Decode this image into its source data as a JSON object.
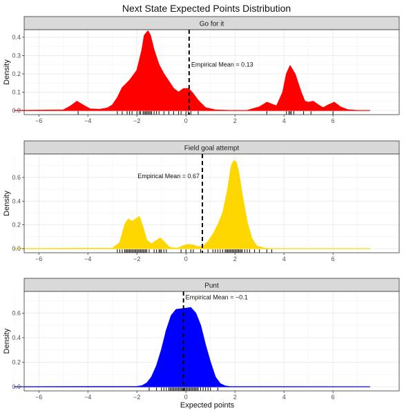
{
  "title": "Next State Expected Points Distribution",
  "xlabel": "Expected points",
  "ylabel": "Density",
  "chart_data": {
    "type": "area",
    "title": "Next State Expected Points Distribution",
    "xlabel": "Expected points",
    "ylabel": "Density",
    "xlim": [
      -7,
      7.5
    ],
    "x_ticks": [
      "-6",
      "-4",
      "-2",
      "0",
      "2",
      "4",
      "6"
    ],
    "grid": true,
    "facets": [
      {
        "label": "Go for it",
        "color": "#ff0000",
        "ylim": [
          0,
          0.43
        ],
        "y_ticks": [
          "0.0",
          "0.1",
          "0.2",
          "0.3",
          "0.4"
        ],
        "mean": 0.13,
        "mean_label": "Empirical Mean =  0.13",
        "label_side": "right",
        "label_y": 0.25,
        "density": {
          "x": [
            -7.0,
            -5.0,
            -4.7,
            -4.45,
            -4.2,
            -3.9,
            -3.5,
            -3.2,
            -3.0,
            -2.8,
            -2.6,
            -2.3,
            -2.0,
            -1.8,
            -1.7,
            -1.55,
            -1.45,
            -1.3,
            -1.1,
            -0.9,
            -0.7,
            -0.5,
            -0.3,
            -0.1,
            0.1,
            0.25,
            0.5,
            0.8,
            1.2,
            1.8,
            2.5,
            3.0,
            3.3,
            3.7,
            3.95,
            4.1,
            4.25,
            4.45,
            4.7,
            4.85,
            5.0,
            5.2,
            5.4,
            5.6,
            5.8,
            6.05,
            6.3,
            6.6,
            7.0,
            7.5
          ],
          "y": [
            0.0,
            0.003,
            0.025,
            0.05,
            0.03,
            0.008,
            0.006,
            0.014,
            0.03,
            0.07,
            0.125,
            0.165,
            0.22,
            0.33,
            0.41,
            0.435,
            0.41,
            0.33,
            0.25,
            0.2,
            0.16,
            0.12,
            0.1,
            0.12,
            0.12,
            0.1,
            0.055,
            0.015,
            0.003,
            0.0,
            0.0,
            0.02,
            0.045,
            0.025,
            0.1,
            0.2,
            0.245,
            0.2,
            0.1,
            0.05,
            0.045,
            0.05,
            0.03,
            0.015,
            0.03,
            0.045,
            0.02,
            0.004,
            0.0,
            0.0
          ]
        },
        "rug": [
          -4.4,
          -2.8,
          -2.6,
          -2.4,
          -2.3,
          -2.2,
          -2.0,
          -1.9,
          -1.85,
          -1.75,
          -1.7,
          -1.65,
          -1.6,
          -1.55,
          -1.5,
          -1.45,
          -1.4,
          -1.3,
          -1.2,
          -1.1,
          -0.9,
          -0.7,
          -0.5,
          -0.3,
          -0.2,
          0.0,
          0.1,
          0.2,
          0.5,
          3.3,
          4.1,
          4.2,
          4.25,
          4.3,
          4.4,
          4.8,
          5.1,
          6.0
        ]
      },
      {
        "label": "Field goal attempt",
        "color": "#ffd700",
        "ylim": [
          0,
          0.78
        ],
        "y_ticks": [
          "0.0",
          "0.2",
          "0.4",
          "0.6"
        ],
        "mean": 0.67,
        "mean_label": "Empirical Mean =  0.67",
        "label_side": "left",
        "label_y": 0.61,
        "density": {
          "x": [
            -7.0,
            -3.0,
            -2.7,
            -2.5,
            -2.35,
            -2.2,
            -2.05,
            -1.9,
            -1.75,
            -1.6,
            -1.4,
            -1.2,
            -1.05,
            -0.9,
            -0.7,
            -0.5,
            -0.3,
            -0.1,
            0.1,
            0.3,
            0.5,
            0.7,
            0.9,
            1.1,
            1.3,
            1.5,
            1.7,
            1.85,
            1.95,
            2.05,
            2.15,
            2.3,
            2.5,
            2.7,
            2.9,
            3.2,
            3.5,
            7.5
          ],
          "y": [
            0.0,
            0.003,
            0.05,
            0.2,
            0.25,
            0.23,
            0.25,
            0.27,
            0.18,
            0.07,
            0.04,
            0.07,
            0.09,
            0.06,
            0.015,
            0.004,
            0.006,
            0.025,
            0.035,
            0.03,
            0.015,
            0.02,
            0.06,
            0.12,
            0.2,
            0.3,
            0.5,
            0.7,
            0.74,
            0.73,
            0.65,
            0.45,
            0.22,
            0.08,
            0.02,
            0.004,
            0.0,
            0.0
          ]
        },
        "rug": [
          -2.8,
          -2.7,
          -2.6,
          -2.5,
          -2.45,
          -2.4,
          -2.35,
          -2.3,
          -2.25,
          -2.2,
          -2.15,
          -2.1,
          -2.05,
          -2.0,
          -1.95,
          -1.9,
          -1.85,
          -1.8,
          -1.75,
          -1.7,
          -1.65,
          -1.6,
          -1.5,
          -1.3,
          -1.2,
          -1.1,
          -1.05,
          -1.0,
          -0.9,
          -0.8,
          -0.2,
          0.0,
          0.2,
          0.3,
          0.6,
          0.9,
          1.1,
          1.2,
          1.3,
          1.4,
          1.5,
          1.6,
          1.65,
          1.7,
          1.75,
          1.8,
          1.85,
          1.9,
          1.95,
          2.0,
          2.05,
          2.1,
          2.15,
          2.2,
          2.25,
          2.3,
          2.4,
          2.5,
          2.6,
          2.8,
          3.0,
          3.3,
          3.5
        ]
      },
      {
        "label": "Punt",
        "color": "#0000ff",
        "ylim": [
          0,
          0.76
        ],
        "y_ticks": [
          "0.0",
          "0.2",
          "0.4",
          "0.6"
        ],
        "mean": -0.1,
        "mean_label": "Empirical Mean =  −0.1",
        "label_side": "right",
        "label_y": 0.73,
        "density": {
          "x": [
            -7.0,
            -2.0,
            -1.8,
            -1.6,
            -1.4,
            -1.2,
            -1.0,
            -0.8,
            -0.6,
            -0.4,
            -0.2,
            0.0,
            0.2,
            0.4,
            0.6,
            0.8,
            1.0,
            1.2,
            1.4,
            1.6,
            1.8,
            7.5
          ],
          "y": [
            0.0,
            0.002,
            0.008,
            0.03,
            0.08,
            0.17,
            0.3,
            0.46,
            0.58,
            0.63,
            0.635,
            0.64,
            0.645,
            0.6,
            0.5,
            0.34,
            0.2,
            0.08,
            0.025,
            0.006,
            0.001,
            0.0
          ]
        },
        "rug": [
          -1.5,
          -1.2,
          -1.0,
          -0.9,
          -0.8,
          -0.7,
          -0.65,
          -0.6,
          -0.55,
          -0.5,
          -0.45,
          -0.4,
          -0.35,
          -0.3,
          -0.25,
          -0.2,
          -0.15,
          -0.1,
          -0.05,
          0.0,
          0.05,
          0.1,
          0.15,
          0.2,
          0.25,
          0.3,
          0.35,
          0.4,
          0.45,
          0.5,
          0.6,
          0.7,
          0.8,
          0.9,
          1.0,
          1.3
        ]
      }
    ]
  }
}
